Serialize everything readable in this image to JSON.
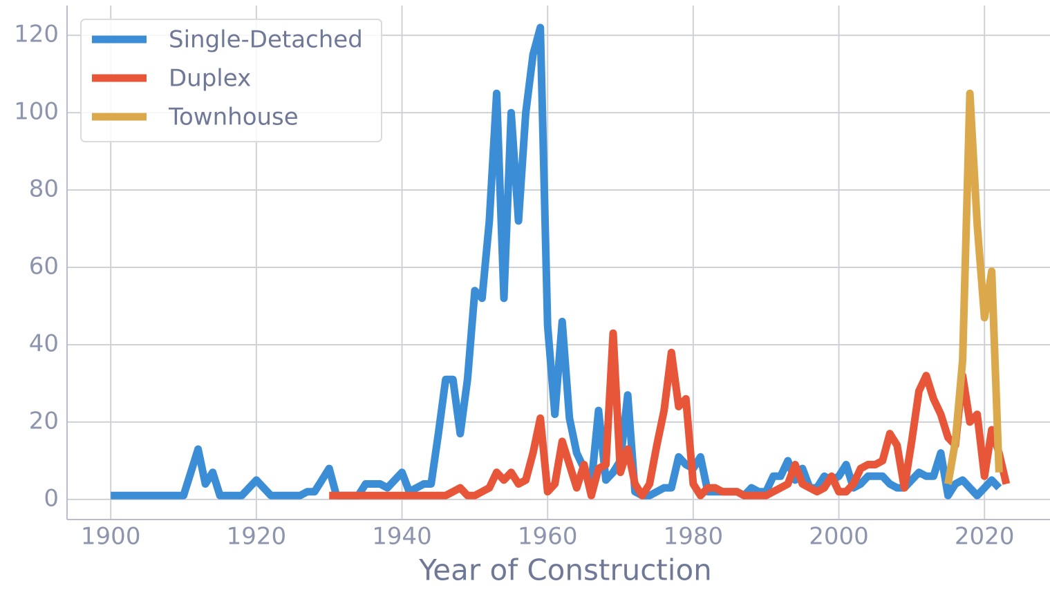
{
  "chart_data": {
    "type": "line",
    "xlabel": "Year of Construction",
    "xlim": [
      1894,
      2029
    ],
    "ylim": [
      -5.2,
      127.7
    ],
    "xticks": [
      1900,
      1920,
      1940,
      1960,
      1980,
      2000,
      2020
    ],
    "yticks": [
      0,
      20,
      40,
      60,
      80,
      100,
      120
    ],
    "grid": true,
    "legend": "upper left",
    "series": [
      {
        "name": "Single-Detached",
        "color": "#3b8ed5",
        "x": [
          1900,
          1901,
          1902,
          1903,
          1904,
          1905,
          1906,
          1907,
          1908,
          1909,
          1910,
          1911,
          1912,
          1913,
          1914,
          1915,
          1916,
          1917,
          1918,
          1919,
          1920,
          1921,
          1922,
          1923,
          1924,
          1925,
          1926,
          1927,
          1928,
          1929,
          1930,
          1931,
          1932,
          1933,
          1934,
          1935,
          1936,
          1937,
          1938,
          1939,
          1940,
          1941,
          1942,
          1943,
          1944,
          1945,
          1946,
          1947,
          1948,
          1949,
          1950,
          1951,
          1952,
          1953,
          1954,
          1955,
          1956,
          1957,
          1958,
          1959,
          1960,
          1961,
          1962,
          1963,
          1964,
          1965,
          1966,
          1967,
          1968,
          1969,
          1970,
          1971,
          1972,
          1973,
          1974,
          1975,
          1976,
          1977,
          1978,
          1979,
          1980,
          1981,
          1982,
          1983,
          1984,
          1985,
          1986,
          1987,
          1988,
          1989,
          1990,
          1991,
          1992,
          1993,
          1994,
          1995,
          1996,
          1997,
          1998,
          1999,
          2000,
          2001,
          2002,
          2003,
          2004,
          2005,
          2006,
          2007,
          2008,
          2009,
          2010,
          2011,
          2012,
          2013,
          2014,
          2015,
          2016,
          2017,
          2018,
          2019,
          2020,
          2021,
          2022
        ],
        "values": [
          1,
          1,
          1,
          1,
          1,
          1,
          1,
          1,
          1,
          1,
          1,
          7,
          13,
          4,
          7,
          1,
          1,
          1,
          1,
          3,
          5,
          3,
          1,
          1,
          1,
          1,
          1,
          2,
          2,
          5,
          8,
          1,
          1,
          1,
          1,
          4,
          4,
          4,
          3,
          5,
          7,
          2,
          3,
          4,
          4,
          17,
          31,
          31,
          17,
          31,
          54,
          52,
          72,
          105,
          52,
          100,
          72,
          100,
          115,
          122,
          45,
          22,
          46,
          21,
          12,
          8,
          4,
          23,
          5,
          7,
          10,
          27,
          2,
          1,
          1,
          2,
          3,
          3,
          11,
          9,
          8,
          11,
          2,
          2,
          2,
          2,
          2,
          1,
          3,
          2,
          2,
          6,
          6,
          10,
          5,
          8,
          3,
          3,
          6,
          5,
          6,
          9,
          3,
          4,
          6,
          6,
          6,
          4,
          3,
          3,
          5,
          7,
          6,
          6,
          12,
          1,
          4,
          5,
          3,
          1,
          3,
          5,
          3
        ]
      },
      {
        "name": "Duplex",
        "color": "#e8563a",
        "x": [
          1930,
          1931,
          1932,
          1933,
          1934,
          1935,
          1936,
          1937,
          1938,
          1939,
          1940,
          1941,
          1942,
          1943,
          1944,
          1945,
          1946,
          1947,
          1948,
          1949,
          1950,
          1951,
          1952,
          1953,
          1954,
          1955,
          1956,
          1957,
          1958,
          1959,
          1960,
          1961,
          1962,
          1963,
          1964,
          1965,
          1966,
          1967,
          1968,
          1969,
          1970,
          1971,
          1972,
          1973,
          1974,
          1975,
          1976,
          1977,
          1978,
          1979,
          1980,
          1981,
          1982,
          1983,
          1984,
          1985,
          1986,
          1987,
          1988,
          1989,
          1990,
          1991,
          1992,
          1993,
          1994,
          1995,
          1996,
          1997,
          1998,
          1999,
          2000,
          2001,
          2002,
          2003,
          2004,
          2005,
          2006,
          2007,
          2008,
          2009,
          2010,
          2011,
          2012,
          2013,
          2014,
          2015,
          2016,
          2017,
          2018,
          2019,
          2020,
          2021,
          2022,
          2023
        ],
        "values": [
          1,
          1,
          1,
          1,
          1,
          1,
          1,
          1,
          1,
          1,
          1,
          1,
          1,
          1,
          1,
          1,
          1,
          2,
          3,
          1,
          1,
          2,
          3,
          7,
          5,
          7,
          4,
          5,
          12,
          21,
          2,
          4,
          15,
          9,
          3,
          9,
          1,
          8,
          9,
          43,
          7,
          13,
          4,
          1,
          4,
          14,
          23,
          38,
          24,
          26,
          4,
          1,
          3,
          3,
          2,
          2,
          2,
          1,
          1,
          1,
          1,
          2,
          3,
          4,
          9,
          4,
          3,
          2,
          3,
          6,
          2,
          2,
          4,
          8,
          9,
          9,
          10,
          17,
          14,
          3,
          15,
          28,
          32,
          26,
          22,
          16,
          14,
          32,
          20,
          22,
          6,
          18,
          12,
          4
        ]
      },
      {
        "name": "Townhouse",
        "color": "#dba94b",
        "x": [
          2015,
          2016,
          2017,
          2018,
          2019,
          2020,
          2021,
          2022
        ],
        "values": [
          4,
          15,
          36,
          105,
          71,
          47,
          59,
          7
        ]
      }
    ]
  }
}
